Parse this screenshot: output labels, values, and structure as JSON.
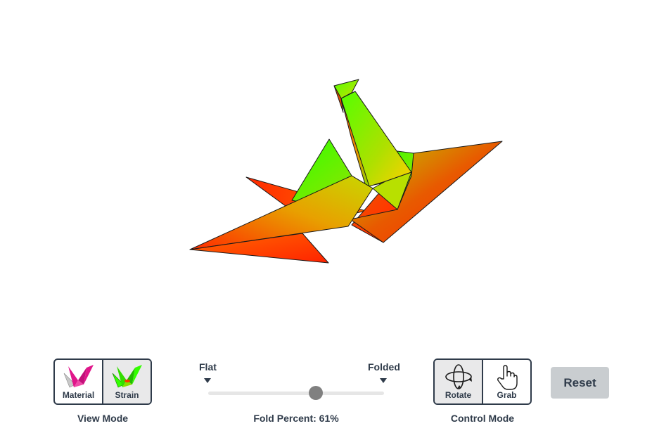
{
  "view_mode": {
    "caption": "View Mode",
    "options": [
      {
        "label": "Material",
        "icon": "material-crane-icon",
        "active": false
      },
      {
        "label": "Strain",
        "icon": "strain-crane-icon",
        "active": true
      }
    ]
  },
  "fold": {
    "min_label": "Flat",
    "max_label": "Folded",
    "caption": "Fold Percent: 61%",
    "percent": 61
  },
  "control_mode": {
    "caption": "Control Mode",
    "options": [
      {
        "label": "Rotate",
        "icon": "rotate-orbit-icon",
        "active": true
      },
      {
        "label": "Grab",
        "icon": "hand-grab-icon",
        "active": false
      }
    ]
  },
  "reset": {
    "label": "Reset"
  },
  "colors": {
    "strain_low": "#33ff00",
    "strain_mid": "#e8c000",
    "strain_high": "#ff2a00",
    "material_pink": "#e0168a",
    "ink": "#2f3b4a",
    "button_bg": "#c9cdd0",
    "active_bg": "#e9e9ea",
    "slider_thumb": "#808080",
    "slider_track": "#e6e6e6"
  }
}
